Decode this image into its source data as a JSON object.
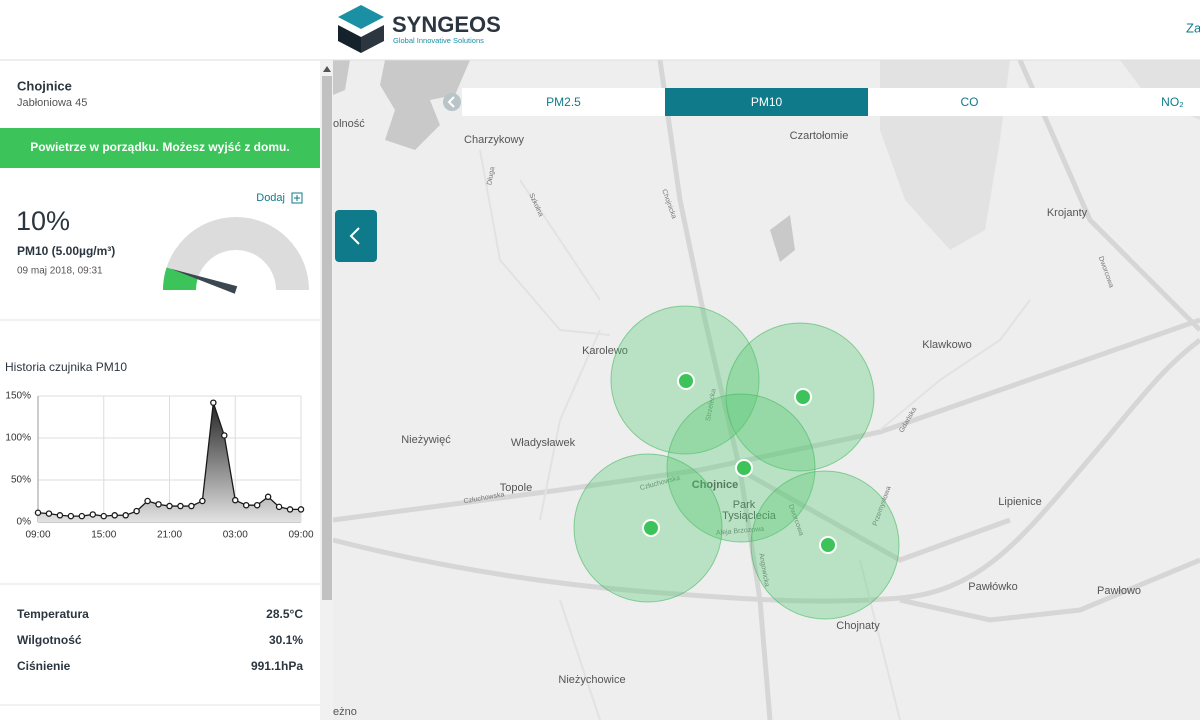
{
  "header": {
    "logo_title": "SYNGEOS",
    "logo_subtitle": "Global Innovative Solutions",
    "nav_link": "Za"
  },
  "sidebar": {
    "city": "Chojnice",
    "address": "Jabłoniowa 45",
    "status": "Powietrze w porządku. Możesz wyjść z domu.",
    "add_button": "Dodaj",
    "reading": {
      "value": 10,
      "value_label": "10%"
    },
    "pollutant": "PM10 (5.00µg/m³)",
    "timestamp": "09 maj 2018, 09:31",
    "measurements": [
      {
        "label": "Temperatura",
        "value": "28.5°C"
      },
      {
        "label": "Wilgotność",
        "value": "30.1%"
      },
      {
        "label": "Ciśnienie",
        "value": "991.1hPa"
      }
    ]
  },
  "chart_data": {
    "type": "line",
    "title": "Historia czujnika PM10",
    "x": [
      0,
      1,
      2,
      3,
      4,
      5,
      6,
      7,
      8,
      9,
      10,
      11,
      12,
      13,
      14,
      15,
      16,
      17,
      18,
      19,
      20,
      21,
      22,
      23,
      24
    ],
    "values": [
      11,
      10,
      8,
      7,
      7,
      9,
      7,
      8,
      8,
      13,
      25,
      21,
      19,
      19,
      19,
      25,
      142,
      103,
      26,
      20,
      20,
      30,
      18,
      15,
      15
    ],
    "color": "#1a1a1a",
    "xlim": [
      0,
      24
    ],
    "xticks": [
      {
        "value": 0,
        "label": "09:00"
      },
      {
        "value": 6,
        "label": "15:00"
      },
      {
        "value": 12,
        "label": "21:00"
      },
      {
        "value": 18,
        "label": "03:00"
      },
      {
        "value": 24,
        "label": "09:00"
      }
    ],
    "ylim": [
      0,
      150
    ],
    "yticks": [
      {
        "value": 0,
        "label": "0%"
      },
      {
        "value": 50,
        "label": "50%"
      },
      {
        "value": 100,
        "label": "100%"
      },
      {
        "value": 150,
        "label": "150%"
      }
    ],
    "grid": true
  },
  "map": {
    "tabs": [
      "PM2.5",
      "PM10",
      "CO",
      "NO₂"
    ],
    "active_tab": 1,
    "places": [
      "olność",
      "Charzykowy",
      "Czartołomie",
      "Krojanty",
      "Karolewo",
      "Klawkowo",
      "Nieżywięć",
      "Władysławek",
      "Topole",
      "Chojnice",
      "Park",
      "Tysiąclecia",
      "Lipienice",
      "Pawłówko",
      "Pawłowo",
      "Chojnaty",
      "Nieżychowice",
      "eżno"
    ],
    "streets": [
      "Długa",
      "Szkolna",
      "Chojnicka",
      "Człuchowska",
      "Człuchowska",
      "Aleja Brzozowa",
      "Gdańska",
      "Przemysłowa",
      "Dworcowa",
      "Dworcowa",
      "Angowicka",
      "Strzelecka"
    ]
  }
}
